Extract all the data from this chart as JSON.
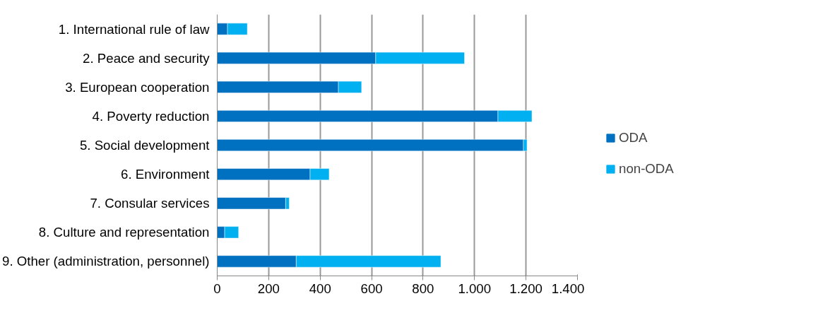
{
  "chart_data": {
    "type": "bar",
    "orientation": "horizontal",
    "stacked": true,
    "categories": [
      "1. International rule of law",
      "2. Peace and security",
      "3. European cooperation",
      "4. Poverty reduction",
      "5. Social development",
      "6. Environment",
      "7. Consular services",
      "8. Culture and representation",
      "9. Other (administration, personnel)"
    ],
    "series": [
      {
        "name": "ODA",
        "color": "#0070c0",
        "values": [
          40,
          616,
          471,
          1091,
          1190,
          361,
          266,
          29,
          307
        ]
      },
      {
        "name": "non-ODA",
        "color": "#00b0f0",
        "values": [
          77,
          345,
          90,
          132,
          14,
          74,
          14,
          54,
          562
        ]
      }
    ],
    "xlim": [
      0,
      1400
    ],
    "xticks": [
      0,
      200,
      400,
      600,
      800,
      {
        "value": 1000,
        "label": "1.000"
      },
      {
        "value": 1200,
        "label": "1.200"
      },
      {
        "value": 1400,
        "label": "1.400"
      }
    ],
    "grid": "x",
    "legend": "right"
  }
}
